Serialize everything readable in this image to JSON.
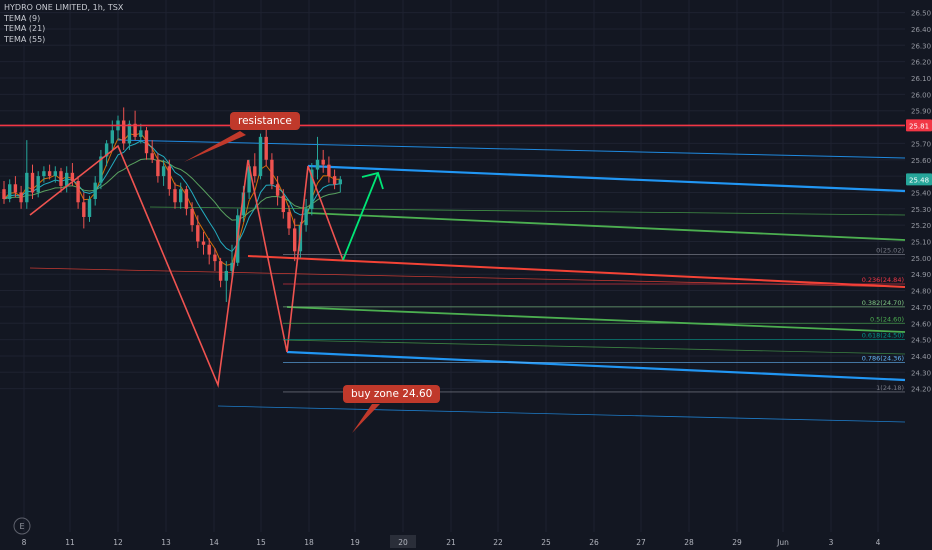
{
  "header": {
    "title": "HYDRO ONE LIMITED, 1h, TSX",
    "indicators": [
      "TEMA (9)",
      "TEMA (21)",
      "TEMA (55)"
    ]
  },
  "colors": {
    "background": "#131722",
    "grid": "#1e2230",
    "up_candle": "#26a69a",
    "down_candle": "#ef5350",
    "resistance": "#f23645",
    "channel_blue": "#2196f3",
    "channel_green": "#4caf50",
    "channel_red": "#f44336",
    "arrow": "#00e676",
    "callout": "#c0392b"
  },
  "annotations": {
    "resistance_label": "resistance",
    "buy_zone_label": "buy zone 24.60",
    "watermark_icon": "tradingview-logo-icon",
    "watermark_letter": "E"
  },
  "chart_data": {
    "type": "candlestick",
    "title": "HYDRO ONE LIMITED, 1h, TSX",
    "y_axis": {
      "ticks": [
        26.5,
        26.4,
        26.3,
        26.2,
        26.1,
        26.0,
        25.9,
        25.8,
        25.7,
        25.6,
        25.5,
        25.4,
        25.3,
        25.2,
        25.1,
        25.0,
        24.9,
        24.8,
        24.7,
        24.6,
        24.5,
        24.4,
        24.3,
        24.2
      ],
      "ylim": [
        24.14,
        26.55
      ],
      "position": "right"
    },
    "x_axis": {
      "tick_labels": [
        "8",
        "11",
        "12",
        "13",
        "14",
        "15",
        "18",
        "19",
        "20",
        "21",
        "22",
        "25",
        "26",
        "27",
        "28",
        "29",
        "Jun",
        "3",
        "4"
      ],
      "highlighted_label": "20"
    },
    "price_labels": [
      {
        "value": 25.81,
        "text": "25.81",
        "color": "#f23645"
      },
      {
        "value": 25.48,
        "text": "25.48",
        "color": "#26a69a"
      }
    ],
    "candles": [
      {
        "o": 25.42,
        "h": 25.47,
        "l": 25.33,
        "c": 25.36
      },
      {
        "o": 25.36,
        "h": 25.48,
        "l": 25.34,
        "c": 25.45
      },
      {
        "o": 25.45,
        "h": 25.5,
        "l": 25.37,
        "c": 25.4
      },
      {
        "o": 25.4,
        "h": 25.44,
        "l": 25.3,
        "c": 25.34
      },
      {
        "o": 25.34,
        "h": 25.72,
        "l": 25.3,
        "c": 25.52
      },
      {
        "o": 25.52,
        "h": 25.57,
        "l": 25.36,
        "c": 25.4
      },
      {
        "o": 25.4,
        "h": 25.53,
        "l": 25.37,
        "c": 25.5
      },
      {
        "o": 25.5,
        "h": 25.56,
        "l": 25.46,
        "c": 25.53
      },
      {
        "o": 25.53,
        "h": 25.57,
        "l": 25.48,
        "c": 25.5
      },
      {
        "o": 25.5,
        "h": 25.56,
        "l": 25.46,
        "c": 25.53
      },
      {
        "o": 25.53,
        "h": 25.55,
        "l": 25.4,
        "c": 25.44
      },
      {
        "o": 25.44,
        "h": 25.56,
        "l": 25.4,
        "c": 25.52
      },
      {
        "o": 25.52,
        "h": 25.58,
        "l": 25.44,
        "c": 25.47
      },
      {
        "o": 25.47,
        "h": 25.5,
        "l": 25.3,
        "c": 25.34
      },
      {
        "o": 25.34,
        "h": 25.4,
        "l": 25.18,
        "c": 25.25
      },
      {
        "o": 25.25,
        "h": 25.38,
        "l": 25.22,
        "c": 25.36
      },
      {
        "o": 25.36,
        "h": 25.5,
        "l": 25.32,
        "c": 25.46
      },
      {
        "o": 25.46,
        "h": 25.66,
        "l": 25.42,
        "c": 25.62
      },
      {
        "o": 25.62,
        "h": 25.72,
        "l": 25.56,
        "c": 25.7
      },
      {
        "o": 25.7,
        "h": 25.84,
        "l": 25.66,
        "c": 25.78
      },
      {
        "o": 25.78,
        "h": 25.87,
        "l": 25.72,
        "c": 25.84
      },
      {
        "o": 25.84,
        "h": 25.92,
        "l": 25.66,
        "c": 25.7
      },
      {
        "o": 25.7,
        "h": 25.84,
        "l": 25.66,
        "c": 25.82
      },
      {
        "o": 25.82,
        "h": 25.9,
        "l": 25.72,
        "c": 25.74
      },
      {
        "o": 25.74,
        "h": 25.82,
        "l": 25.7,
        "c": 25.78
      },
      {
        "o": 25.78,
        "h": 25.8,
        "l": 25.6,
        "c": 25.64
      },
      {
        "o": 25.64,
        "h": 25.72,
        "l": 25.58,
        "c": 25.6
      },
      {
        "o": 25.6,
        "h": 25.64,
        "l": 25.46,
        "c": 25.5
      },
      {
        "o": 25.5,
        "h": 25.6,
        "l": 25.44,
        "c": 25.56
      },
      {
        "o": 25.56,
        "h": 25.6,
        "l": 25.38,
        "c": 25.42
      },
      {
        "o": 25.42,
        "h": 25.46,
        "l": 25.3,
        "c": 25.34
      },
      {
        "o": 25.34,
        "h": 25.46,
        "l": 25.3,
        "c": 25.42
      },
      {
        "o": 25.42,
        "h": 25.44,
        "l": 25.26,
        "c": 25.3
      },
      {
        "o": 25.3,
        "h": 25.34,
        "l": 25.16,
        "c": 25.2
      },
      {
        "o": 25.2,
        "h": 25.26,
        "l": 25.06,
        "c": 25.1
      },
      {
        "o": 25.1,
        "h": 25.16,
        "l": 25.02,
        "c": 25.08
      },
      {
        "o": 25.08,
        "h": 25.12,
        "l": 24.96,
        "c": 25.02
      },
      {
        "o": 25.02,
        "h": 25.06,
        "l": 24.92,
        "c": 24.98
      },
      {
        "o": 24.98,
        "h": 25.0,
        "l": 24.82,
        "c": 24.86
      },
      {
        "o": 24.86,
        "h": 24.98,
        "l": 24.73,
        "c": 24.92
      },
      {
        "o": 24.92,
        "h": 25.08,
        "l": 24.88,
        "c": 24.97
      },
      {
        "o": 24.97,
        "h": 25.3,
        "l": 24.95,
        "c": 25.26
      },
      {
        "o": 25.26,
        "h": 25.44,
        "l": 25.22,
        "c": 25.4
      },
      {
        "o": 25.4,
        "h": 25.6,
        "l": 25.36,
        "c": 25.56
      },
      {
        "o": 25.56,
        "h": 25.64,
        "l": 25.46,
        "c": 25.5
      },
      {
        "o": 25.5,
        "h": 25.76,
        "l": 25.48,
        "c": 25.74
      },
      {
        "o": 25.74,
        "h": 25.8,
        "l": 25.56,
        "c": 25.6
      },
      {
        "o": 25.6,
        "h": 25.64,
        "l": 25.42,
        "c": 25.45
      },
      {
        "o": 25.45,
        "h": 25.5,
        "l": 25.32,
        "c": 25.38
      },
      {
        "o": 25.38,
        "h": 25.42,
        "l": 25.24,
        "c": 25.28
      },
      {
        "o": 25.28,
        "h": 25.32,
        "l": 25.14,
        "c": 25.18
      },
      {
        "o": 25.18,
        "h": 25.24,
        "l": 24.98,
        "c": 25.04
      },
      {
        "o": 25.04,
        "h": 25.22,
        "l": 25.0,
        "c": 25.2
      },
      {
        "o": 25.2,
        "h": 25.36,
        "l": 25.16,
        "c": 25.3
      },
      {
        "o": 25.3,
        "h": 25.58,
        "l": 25.26,
        "c": 25.54
      },
      {
        "o": 25.54,
        "h": 25.74,
        "l": 25.48,
        "c": 25.6
      },
      {
        "o": 25.6,
        "h": 25.66,
        "l": 25.52,
        "c": 25.57
      },
      {
        "o": 25.57,
        "h": 25.62,
        "l": 25.46,
        "c": 25.5
      },
      {
        "o": 25.5,
        "h": 25.54,
        "l": 25.42,
        "c": 25.45
      },
      {
        "o": 25.45,
        "h": 25.5,
        "l": 25.4,
        "c": 25.48
      }
    ],
    "overlays": {
      "resistance_level": 25.81,
      "fibonacci": [
        {
          "ratio": "0",
          "value": 25.02
        },
        {
          "ratio": "0.236",
          "value": 24.84
        },
        {
          "ratio": "0.382",
          "value": 24.7
        },
        {
          "ratio": "0.5",
          "value": 24.6
        },
        {
          "ratio": "0.618",
          "value": 24.5
        },
        {
          "ratio": "0.786",
          "value": 24.36
        },
        {
          "ratio": "1",
          "value": 24.18
        }
      ],
      "fibonacci_labels": [
        "0(25.02)",
        "0.236(24.84)",
        "0.382(24.70)",
        "0.5(24.60)",
        "0.618(24.50)",
        "0.786(24.36)",
        "1(24.18)"
      ]
    }
  }
}
